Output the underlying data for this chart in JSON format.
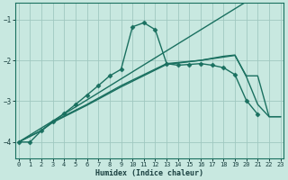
{
  "background_color": "#c8e8e0",
  "grid_color": "#a0c8c0",
  "line_color": "#1a7060",
  "xlabel": "Humidex (Indice chaleur)",
  "ylim": [
    -4.4,
    -0.6
  ],
  "xlim": [
    -0.3,
    23.3
  ],
  "yticks": [
    -4,
    -3,
    -2,
    -1
  ],
  "xticks": [
    0,
    1,
    2,
    3,
    4,
    5,
    6,
    7,
    8,
    9,
    10,
    11,
    12,
    13,
    14,
    15,
    16,
    17,
    18,
    19,
    20,
    21,
    22,
    23
  ],
  "series": [
    {
      "x": [
        0,
        1,
        2,
        3,
        4,
        5,
        6,
        7,
        8,
        9,
        10,
        11,
        12,
        13,
        14,
        15,
        16,
        17,
        18,
        19,
        20,
        21
      ],
      "y": [
        -4.0,
        -4.0,
        -3.72,
        -3.5,
        -3.3,
        -3.08,
        -2.85,
        -2.62,
        -2.38,
        -2.22,
        -1.18,
        -1.08,
        -1.25,
        -2.08,
        -2.12,
        -2.1,
        -2.08,
        -2.12,
        -2.18,
        -2.35,
        -2.98,
        -3.32
      ],
      "marker": "D",
      "markersize": 2.5,
      "lw": 1.0
    },
    {
      "x": [
        0,
        23
      ],
      "y": [
        -4.0,
        -0.05
      ],
      "marker": "",
      "markersize": 0,
      "lw": 1.0
    },
    {
      "x": [
        0,
        2,
        3,
        6,
        9,
        13,
        16,
        18,
        19,
        20,
        21,
        22,
        23
      ],
      "y": [
        -4.0,
        -3.72,
        -3.5,
        -3.08,
        -2.62,
        -2.08,
        -2.0,
        -1.9,
        -1.87,
        -2.4,
        -3.08,
        -3.38,
        -3.38
      ],
      "marker": "",
      "markersize": 0,
      "lw": 1.0
    },
    {
      "x": [
        0,
        2,
        3,
        6,
        9,
        13,
        16,
        19,
        20,
        21,
        22,
        23
      ],
      "y": [
        -4.0,
        -3.72,
        -3.52,
        -3.1,
        -2.65,
        -2.1,
        -2.0,
        -1.88,
        -2.38,
        -2.38,
        -3.38,
        -3.38
      ],
      "marker": "",
      "markersize": 0,
      "lw": 1.0
    }
  ]
}
